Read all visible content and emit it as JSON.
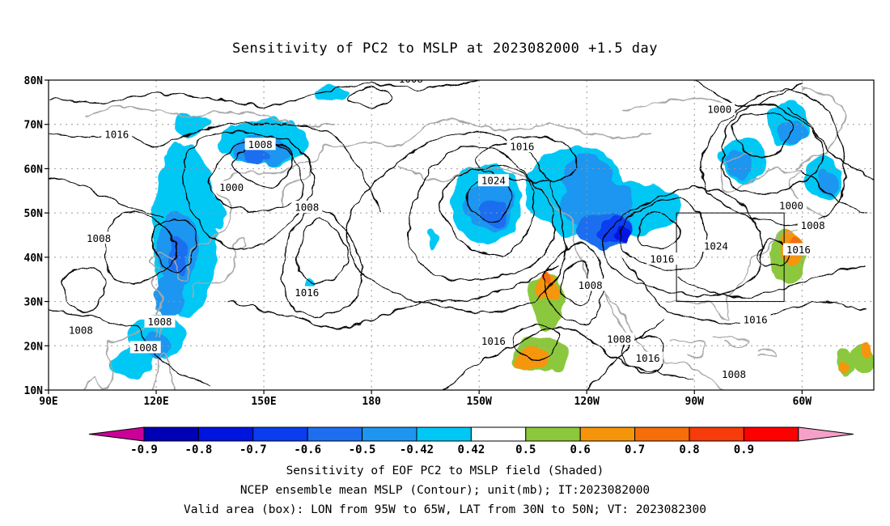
{
  "title": "Sensitivity of PC2 to MSLP at 2023082000 +1.5 day",
  "map": {
    "lat_labels": [
      "80N",
      "70N",
      "60N",
      "50N",
      "40N",
      "30N",
      "20N",
      "10N"
    ],
    "lon_labels": [
      "90E",
      "120E",
      "150E",
      "180",
      "150W",
      "120W",
      "90W",
      "60W"
    ],
    "contour_labels": [
      {
        "text": "1008",
        "lon": 191,
        "lat": 80.3
      },
      {
        "text": "1000",
        "lon": 277,
        "lat": 73.4
      },
      {
        "text": "1016",
        "lon": 109,
        "lat": 67.8
      },
      {
        "text": "1008",
        "lon": 149,
        "lat": 65.5
      },
      {
        "text": "1016",
        "lon": 222,
        "lat": 65.0
      },
      {
        "text": "1024",
        "lon": 214,
        "lat": 57.3
      },
      {
        "text": "1000",
        "lon": 141,
        "lat": 55.8
      },
      {
        "text": "1008",
        "lon": 162,
        "lat": 51.3
      },
      {
        "text": "1008",
        "lon": 104,
        "lat": 44.3
      },
      {
        "text": "1016",
        "lon": 162,
        "lat": 32.0
      },
      {
        "text": "1008",
        "lon": 121,
        "lat": 25.4
      },
      {
        "text": "1008",
        "lon": 99,
        "lat": 23.5
      },
      {
        "text": "1008",
        "lon": 117,
        "lat": 19.6
      },
      {
        "text": "1008",
        "lon": 241,
        "lat": 33.7
      },
      {
        "text": "1016",
        "lon": 261,
        "lat": 39.6
      },
      {
        "text": "1024",
        "lon": 276,
        "lat": 42.5
      },
      {
        "text": "1000",
        "lon": 297,
        "lat": 51.7
      },
      {
        "text": "1008",
        "lon": 303,
        "lat": 47.2
      },
      {
        "text": "1016",
        "lon": 299,
        "lat": 41.7
      },
      {
        "text": "1016",
        "lon": 214,
        "lat": 21.1
      },
      {
        "text": "1008",
        "lon": 249,
        "lat": 21.5
      },
      {
        "text": "1016",
        "lon": 257,
        "lat": 17.2
      },
      {
        "text": "1016",
        "lon": 287,
        "lat": 25.9
      },
      {
        "text": "1008",
        "lon": 281,
        "lat": 13.6
      }
    ],
    "valid_box": {
      "lon_min": 265,
      "lon_max": 295,
      "lat_min": 30,
      "lat_max": 50
    }
  },
  "colorbar": {
    "labels": [
      "-0.9",
      "-0.8",
      "-0.7",
      "-0.6",
      "-0.5",
      "-0.42",
      "0.42",
      "0.5",
      "0.6",
      "0.7",
      "0.8",
      "0.9"
    ],
    "colors": [
      "#cc0099",
      "#0000b4",
      "#0014e0",
      "#0a3cf0",
      "#1e6ef0",
      "#1e96f0",
      "#00c8f5",
      "#ffffff",
      "#8cc83c",
      "#f5960a",
      "#f56e0a",
      "#f53c0a",
      "#ff0000",
      "#f5a0c8"
    ]
  },
  "captions": {
    "line1": "Sensitivity of EOF PC2 to MSLP field (Shaded)",
    "line2": "NCEP ensemble mean MSLP (Contour); unit(mb); IT:2023082000",
    "line3": "Valid area (box): LON from 95W to 65W, LAT from 30N to 50N; VT: 2023082300"
  }
}
